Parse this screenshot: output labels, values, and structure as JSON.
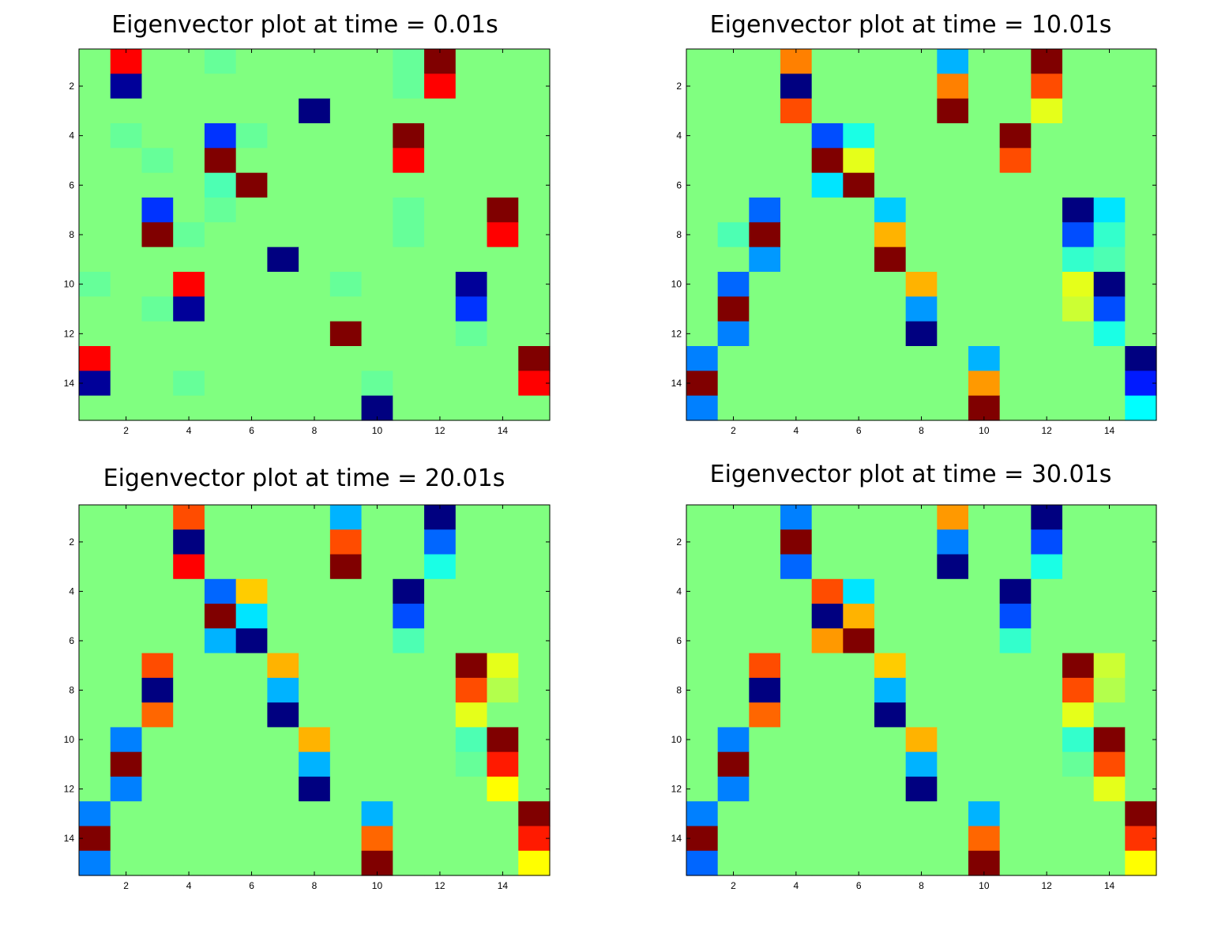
{
  "chart_data": [
    {
      "type": "heatmap",
      "title": "Eigenvector plot at time = 0.01s",
      "xlabel": "",
      "ylabel": "",
      "xlim": [
        0.5,
        15.5
      ],
      "ylim": [
        0.5,
        15.5
      ],
      "xticks": [
        2,
        4,
        6,
        8,
        10,
        12,
        14
      ],
      "yticks": [
        2,
        4,
        6,
        8,
        10,
        12,
        14
      ],
      "colormap": "jet",
      "clim": [
        -1,
        1
      ],
      "y_direction": "reversed",
      "grid": false,
      "values": [
        [
          0.0,
          0.75,
          0.0,
          0.0,
          -0.05,
          0.0,
          0.0,
          0.0,
          0.0,
          0.0,
          -0.05,
          1.0,
          0.0,
          0.0,
          0.0
        ],
        [
          0.0,
          -0.95,
          0.0,
          0.0,
          0.0,
          0.0,
          0.0,
          0.0,
          0.0,
          0.0,
          -0.05,
          0.75,
          0.0,
          0.0,
          0.0
        ],
        [
          0.0,
          0.0,
          0.0,
          0.0,
          0.0,
          0.0,
          0.0,
          -1.0,
          0.0,
          0.0,
          0.0,
          0.0,
          0.0,
          0.0,
          0.0
        ],
        [
          0.0,
          -0.05,
          0.0,
          0.0,
          -0.65,
          -0.05,
          0.0,
          0.0,
          0.0,
          0.0,
          1.0,
          0.0,
          0.0,
          0.0,
          0.0
        ],
        [
          0.0,
          0.0,
          -0.05,
          0.0,
          1.0,
          0.0,
          0.0,
          0.0,
          0.0,
          0.0,
          0.75,
          0.0,
          0.0,
          0.0,
          0.0
        ],
        [
          0.0,
          0.0,
          0.0,
          0.0,
          -0.1,
          1.1,
          0.0,
          0.0,
          0.0,
          0.0,
          0.0,
          0.0,
          0.0,
          0.0,
          0.0
        ],
        [
          0.0,
          0.0,
          -0.65,
          0.0,
          -0.05,
          0.0,
          0.0,
          0.0,
          0.0,
          0.0,
          -0.05,
          0.0,
          0.0,
          1.0,
          0.0
        ],
        [
          0.0,
          0.0,
          1.0,
          -0.05,
          0.0,
          0.0,
          0.0,
          0.0,
          0.0,
          0.0,
          -0.05,
          0.0,
          0.0,
          0.75,
          0.0
        ],
        [
          0.0,
          0.0,
          0.0,
          0.0,
          0.0,
          0.0,
          -1.0,
          0.0,
          0.0,
          0.0,
          0.0,
          0.0,
          0.0,
          0.0,
          0.0
        ],
        [
          -0.05,
          0.0,
          0.0,
          0.75,
          0.0,
          0.0,
          0.0,
          0.0,
          -0.05,
          0.0,
          0.0,
          0.0,
          -0.95,
          0.0,
          0.0
        ],
        [
          0.0,
          0.0,
          -0.05,
          -0.95,
          0.0,
          0.0,
          0.0,
          0.0,
          0.0,
          0.0,
          0.0,
          0.0,
          -0.65,
          0.0,
          0.0
        ],
        [
          0.0,
          0.0,
          0.0,
          0.0,
          0.0,
          0.0,
          0.0,
          0.0,
          1.1,
          0.0,
          0.0,
          0.0,
          -0.05,
          0.0,
          0.0
        ],
        [
          0.75,
          0.0,
          0.0,
          0.0,
          0.0,
          0.0,
          0.0,
          0.0,
          0.0,
          0.0,
          0.0,
          0.0,
          0.0,
          0.0,
          1.0
        ],
        [
          -0.95,
          0.0,
          0.0,
          -0.05,
          0.0,
          0.0,
          0.0,
          0.0,
          0.0,
          -0.05,
          0.0,
          0.0,
          0.0,
          0.0,
          0.75
        ],
        [
          0.0,
          0.0,
          0.0,
          0.0,
          0.0,
          0.0,
          0.0,
          0.0,
          0.0,
          -1.0,
          0.0,
          0.0,
          0.0,
          0.0,
          0.0
        ]
      ]
    },
    {
      "type": "heatmap",
      "title": "Eigenvector plot at time = 10.01s",
      "xlabel": "",
      "ylabel": "",
      "xlim": [
        0.5,
        15.5
      ],
      "ylim": [
        0.5,
        15.5
      ],
      "xticks": [
        2,
        4,
        6,
        8,
        10,
        12,
        14
      ],
      "yticks": [
        2,
        4,
        6,
        8,
        10,
        12,
        14
      ],
      "colormap": "jet",
      "clim": [
        -1,
        1
      ],
      "y_direction": "reversed",
      "grid": false,
      "values": [
        [
          0.0,
          0.0,
          0.0,
          0.5,
          0.0,
          0.0,
          0.0,
          0.0,
          -0.4,
          0.0,
          0.0,
          1.0,
          0.0,
          0.0,
          0.0
        ],
        [
          0.0,
          0.0,
          0.0,
          -1.0,
          0.0,
          0.0,
          0.0,
          0.0,
          0.5,
          0.0,
          0.0,
          0.6,
          0.0,
          0.0,
          0.0
        ],
        [
          0.0,
          0.0,
          0.0,
          0.6,
          0.0,
          0.0,
          0.0,
          0.0,
          1.0,
          0.0,
          0.0,
          0.2,
          0.0,
          0.0,
          0.0
        ],
        [
          0.0,
          0.0,
          0.0,
          0.0,
          -0.6,
          -0.2,
          0.0,
          0.0,
          0.0,
          0.0,
          1.0,
          0.0,
          0.0,
          0.0,
          0.0
        ],
        [
          0.0,
          0.0,
          0.0,
          0.0,
          1.0,
          0.2,
          0.0,
          0.0,
          0.0,
          0.0,
          0.6,
          0.0,
          0.0,
          0.0,
          0.0
        ],
        [
          0.0,
          0.0,
          0.0,
          0.0,
          -0.3,
          1.1,
          0.0,
          0.0,
          0.0,
          0.0,
          0.0,
          0.0,
          0.0,
          0.0,
          0.0
        ],
        [
          0.0,
          0.0,
          -0.55,
          0.0,
          0.0,
          0.0,
          -0.35,
          0.0,
          0.0,
          0.0,
          0.0,
          0.0,
          -1.0,
          -0.3,
          0.0
        ],
        [
          0.0,
          -0.1,
          1.0,
          0.0,
          0.0,
          0.0,
          0.4,
          0.0,
          0.0,
          0.0,
          0.0,
          0.0,
          -0.6,
          -0.15,
          0.0
        ],
        [
          0.0,
          0.0,
          -0.45,
          0.0,
          0.0,
          0.0,
          1.0,
          0.0,
          0.0,
          0.0,
          0.0,
          0.0,
          -0.15,
          -0.1,
          0.0
        ],
        [
          0.0,
          -0.55,
          0.0,
          0.0,
          0.0,
          0.0,
          0.0,
          0.4,
          0.0,
          0.0,
          0.0,
          0.0,
          0.2,
          -1.0,
          0.0
        ],
        [
          0.0,
          1.0,
          0.0,
          0.0,
          0.0,
          0.0,
          0.0,
          -0.45,
          0.0,
          0.0,
          0.0,
          0.0,
          0.15,
          -0.6,
          0.0
        ],
        [
          0.0,
          -0.5,
          0.0,
          0.0,
          0.0,
          0.0,
          0.0,
          -1.0,
          0.0,
          0.0,
          0.0,
          0.0,
          0.0,
          -0.2,
          0.0
        ],
        [
          -0.5,
          0.0,
          0.0,
          0.0,
          0.0,
          0.0,
          0.0,
          0.0,
          0.0,
          -0.4,
          0.0,
          0.0,
          0.0,
          0.0,
          -1.0
        ],
        [
          1.0,
          0.0,
          0.0,
          0.0,
          0.0,
          0.0,
          0.0,
          0.0,
          0.0,
          0.45,
          0.0,
          0.0,
          0.0,
          0.0,
          -0.7
        ],
        [
          -0.5,
          0.0,
          0.0,
          0.0,
          0.0,
          0.0,
          0.0,
          0.0,
          0.0,
          1.0,
          0.0,
          0.0,
          0.0,
          0.0,
          -0.25
        ]
      ]
    },
    {
      "type": "heatmap",
      "title": "Eigenvector plot at time = 20.01s",
      "xlabel": "",
      "ylabel": "",
      "xlim": [
        0.5,
        15.5
      ],
      "ylim": [
        0.5,
        15.5
      ],
      "xticks": [
        2,
        4,
        6,
        8,
        10,
        12,
        14
      ],
      "yticks": [
        2,
        4,
        6,
        8,
        10,
        12,
        14
      ],
      "colormap": "jet",
      "clim": [
        -1,
        1
      ],
      "y_direction": "reversed",
      "grid": false,
      "values": [
        [
          0.0,
          0.0,
          0.0,
          0.6,
          0.0,
          0.0,
          0.0,
          0.0,
          -0.4,
          0.0,
          0.0,
          -1.0,
          0.0,
          0.0,
          0.0
        ],
        [
          0.0,
          0.0,
          0.0,
          -1.0,
          0.0,
          0.0,
          0.0,
          0.0,
          0.6,
          0.0,
          0.0,
          -0.55,
          0.0,
          0.0,
          0.0
        ],
        [
          0.0,
          0.0,
          0.0,
          0.75,
          0.0,
          0.0,
          0.0,
          0.0,
          1.1,
          0.0,
          0.0,
          -0.2,
          0.0,
          0.0,
          0.0
        ],
        [
          0.0,
          0.0,
          0.0,
          0.0,
          -0.55,
          0.35,
          0.0,
          0.0,
          0.0,
          0.0,
          -1.0,
          0.0,
          0.0,
          0.0,
          0.0
        ],
        [
          0.0,
          0.0,
          0.0,
          0.0,
          1.0,
          -0.3,
          0.0,
          0.0,
          0.0,
          0.0,
          -0.6,
          0.0,
          0.0,
          0.0,
          0.0
        ],
        [
          0.0,
          0.0,
          0.0,
          0.0,
          -0.4,
          -1.0,
          0.0,
          0.0,
          0.0,
          0.0,
          -0.1,
          0.0,
          0.0,
          0.0,
          0.0
        ],
        [
          0.0,
          0.0,
          0.6,
          0.0,
          0.0,
          0.0,
          0.4,
          0.0,
          0.0,
          0.0,
          0.0,
          0.0,
          1.1,
          0.2,
          0.0
        ],
        [
          0.0,
          0.0,
          -1.0,
          0.0,
          0.0,
          0.0,
          -0.4,
          0.0,
          0.0,
          0.0,
          0.0,
          0.0,
          0.6,
          0.1,
          0.0
        ],
        [
          0.0,
          0.0,
          0.55,
          0.0,
          0.0,
          0.0,
          -1.0,
          0.0,
          0.0,
          0.0,
          0.0,
          0.0,
          0.2,
          0.0,
          0.0
        ],
        [
          0.0,
          -0.5,
          0.0,
          0.0,
          0.0,
          0.0,
          0.0,
          0.4,
          0.0,
          0.0,
          0.0,
          0.0,
          -0.1,
          1.1,
          0.0
        ],
        [
          0.0,
          1.0,
          0.0,
          0.0,
          0.0,
          0.0,
          0.0,
          -0.4,
          0.0,
          0.0,
          0.0,
          0.0,
          -0.05,
          0.7,
          0.0
        ],
        [
          0.0,
          -0.5,
          0.0,
          0.0,
          0.0,
          0.0,
          0.0,
          -1.0,
          0.0,
          0.0,
          0.0,
          0.0,
          0.0,
          0.25,
          0.0
        ],
        [
          -0.5,
          0.0,
          0.0,
          0.0,
          0.0,
          0.0,
          0.0,
          0.0,
          0.0,
          -0.4,
          0.0,
          0.0,
          0.0,
          0.0,
          1.1
        ],
        [
          1.1,
          0.0,
          0.0,
          0.0,
          0.0,
          0.0,
          0.0,
          0.0,
          0.0,
          0.55,
          0.0,
          0.0,
          0.0,
          0.0,
          0.7
        ],
        [
          -0.5,
          0.0,
          0.0,
          0.0,
          0.0,
          0.0,
          0.0,
          0.0,
          0.0,
          1.1,
          0.0,
          0.0,
          0.0,
          0.0,
          0.25
        ]
      ]
    },
    {
      "type": "heatmap",
      "title": "Eigenvector plot at time = 30.01s",
      "xlabel": "",
      "ylabel": "",
      "xlim": [
        0.5,
        15.5
      ],
      "ylim": [
        0.5,
        15.5
      ],
      "xticks": [
        2,
        4,
        6,
        8,
        10,
        12,
        14
      ],
      "yticks": [
        2,
        4,
        6,
        8,
        10,
        12,
        14
      ],
      "colormap": "jet",
      "clim": [
        -1,
        1
      ],
      "y_direction": "reversed",
      "grid": false,
      "values": [
        [
          0.0,
          0.0,
          0.0,
          -0.5,
          0.0,
          0.0,
          0.0,
          0.0,
          0.45,
          0.0,
          0.0,
          -1.0,
          0.0,
          0.0,
          0.0
        ],
        [
          0.0,
          0.0,
          0.0,
          1.0,
          0.0,
          0.0,
          0.0,
          0.0,
          -0.5,
          0.0,
          0.0,
          -0.6,
          0.0,
          0.0,
          0.0
        ],
        [
          0.0,
          0.0,
          0.0,
          -0.55,
          0.0,
          0.0,
          0.0,
          0.0,
          -1.0,
          0.0,
          0.0,
          -0.2,
          0.0,
          0.0,
          0.0
        ],
        [
          0.0,
          0.0,
          0.0,
          0.0,
          0.6,
          -0.3,
          0.0,
          0.0,
          0.0,
          0.0,
          -1.0,
          0.0,
          0.0,
          0.0,
          0.0
        ],
        [
          0.0,
          0.0,
          0.0,
          0.0,
          -1.0,
          0.4,
          0.0,
          0.0,
          0.0,
          0.0,
          -0.6,
          0.0,
          0.0,
          0.0,
          0.0
        ],
        [
          0.0,
          0.0,
          0.0,
          0.0,
          0.45,
          1.1,
          0.0,
          0.0,
          0.0,
          0.0,
          -0.15,
          0.0,
          0.0,
          0.0,
          0.0
        ],
        [
          0.0,
          0.0,
          0.6,
          0.0,
          0.0,
          0.0,
          0.35,
          0.0,
          0.0,
          0.0,
          0.0,
          0.0,
          1.1,
          0.15,
          0.0
        ],
        [
          0.0,
          0.0,
          -1.0,
          0.0,
          0.0,
          0.0,
          -0.4,
          0.0,
          0.0,
          0.0,
          0.0,
          0.0,
          0.6,
          0.1,
          0.0
        ],
        [
          0.0,
          0.0,
          0.55,
          0.0,
          0.0,
          0.0,
          -1.0,
          0.0,
          0.0,
          0.0,
          0.0,
          0.0,
          0.2,
          0.0,
          0.0
        ],
        [
          0.0,
          -0.5,
          0.0,
          0.0,
          0.0,
          0.0,
          0.0,
          0.4,
          0.0,
          0.0,
          0.0,
          0.0,
          -0.15,
          1.1,
          0.0
        ],
        [
          0.0,
          1.0,
          0.0,
          0.0,
          0.0,
          0.0,
          0.0,
          -0.4,
          0.0,
          0.0,
          0.0,
          0.0,
          -0.05,
          0.6,
          0.0
        ],
        [
          0.0,
          -0.5,
          0.0,
          0.0,
          0.0,
          0.0,
          0.0,
          -1.0,
          0.0,
          0.0,
          0.0,
          0.0,
          0.0,
          0.2,
          0.0
        ],
        [
          -0.5,
          0.0,
          0.0,
          0.0,
          0.0,
          0.0,
          0.0,
          0.0,
          0.0,
          -0.4,
          0.0,
          0.0,
          0.0,
          0.0,
          1.0
        ],
        [
          1.0,
          0.0,
          0.0,
          0.0,
          0.0,
          0.0,
          0.0,
          0.0,
          0.0,
          0.55,
          0.0,
          0.0,
          0.0,
          0.0,
          0.65
        ],
        [
          -0.55,
          0.0,
          0.0,
          0.0,
          0.0,
          0.0,
          0.0,
          0.0,
          0.0,
          1.0,
          0.0,
          0.0,
          0.0,
          0.0,
          0.25
        ]
      ]
    }
  ]
}
